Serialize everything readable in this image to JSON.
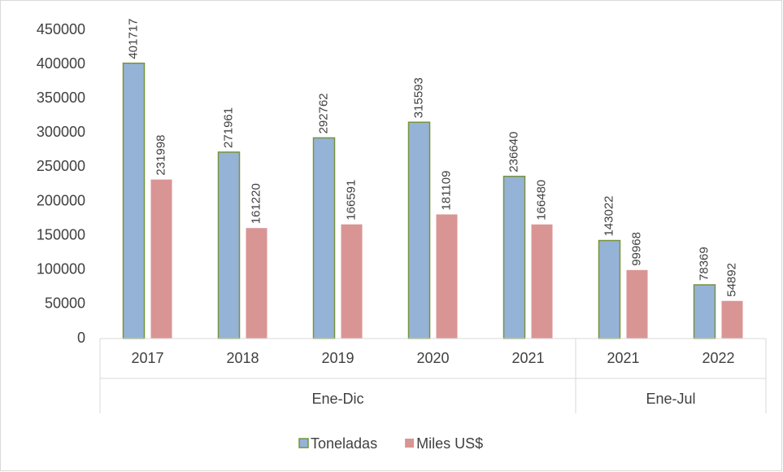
{
  "chart_data": {
    "type": "bar",
    "category_groups": [
      {
        "name": "Ene-Dic",
        "categories": [
          "2017",
          "2018",
          "2019",
          "2020",
          "2021"
        ]
      },
      {
        "name": "Ene-Jul",
        "categories": [
          "2021",
          "2022"
        ]
      }
    ],
    "series": [
      {
        "name": "Toneladas",
        "color": "#95b3d7",
        "border": "#77933c",
        "values": [
          401717,
          271961,
          292762,
          315593,
          236640,
          143022,
          78369
        ]
      },
      {
        "name": "Miles US$",
        "color": "#d99594",
        "values": [
          231998,
          161220,
          166591,
          181109,
          166480,
          99968,
          54892
        ]
      }
    ],
    "ylim": [
      0,
      450000
    ],
    "yticks": [
      0,
      50000,
      100000,
      150000,
      200000,
      250000,
      300000,
      350000,
      400000,
      450000
    ],
    "grid": false,
    "legend": "bottom"
  }
}
